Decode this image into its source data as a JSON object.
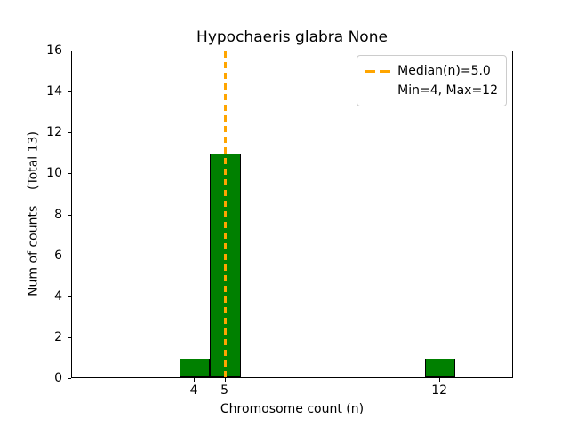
{
  "figure": {
    "title": "Hypochaeris glabra None",
    "xlabel": "Chromosome count (n)",
    "ylabel": "Num of counts    (Total 13)"
  },
  "legend": {
    "median_label": "Median(n)=5.0",
    "minmax_label": "Min=4, Max=12"
  },
  "colors": {
    "bar_fill": "#008000",
    "bar_edge": "#000000",
    "median_line": "#FFA500",
    "legend_border": "#cccccc"
  },
  "chart_data": {
    "type": "bar",
    "title": "Hypochaeris glabra None",
    "xlabel": "Chromosome count (n)",
    "ylabel": "Num of counts    (Total 13)",
    "x": [
      4,
      5,
      12
    ],
    "values": [
      1,
      11,
      1
    ],
    "bar_width": 1,
    "total_counts": 13,
    "median": 5.0,
    "min": 4,
    "max": 12,
    "xticks": [
      4,
      5,
      12
    ],
    "yticks": [
      0,
      2,
      4,
      6,
      8,
      10,
      12,
      14,
      16
    ],
    "xlim": [
      0,
      14.4
    ],
    "ylim": [
      0,
      16
    ],
    "grid": false,
    "legend_position": "upper right",
    "legend_entries": [
      "Median(n)=5.0",
      "Min=4, Max=12"
    ]
  }
}
